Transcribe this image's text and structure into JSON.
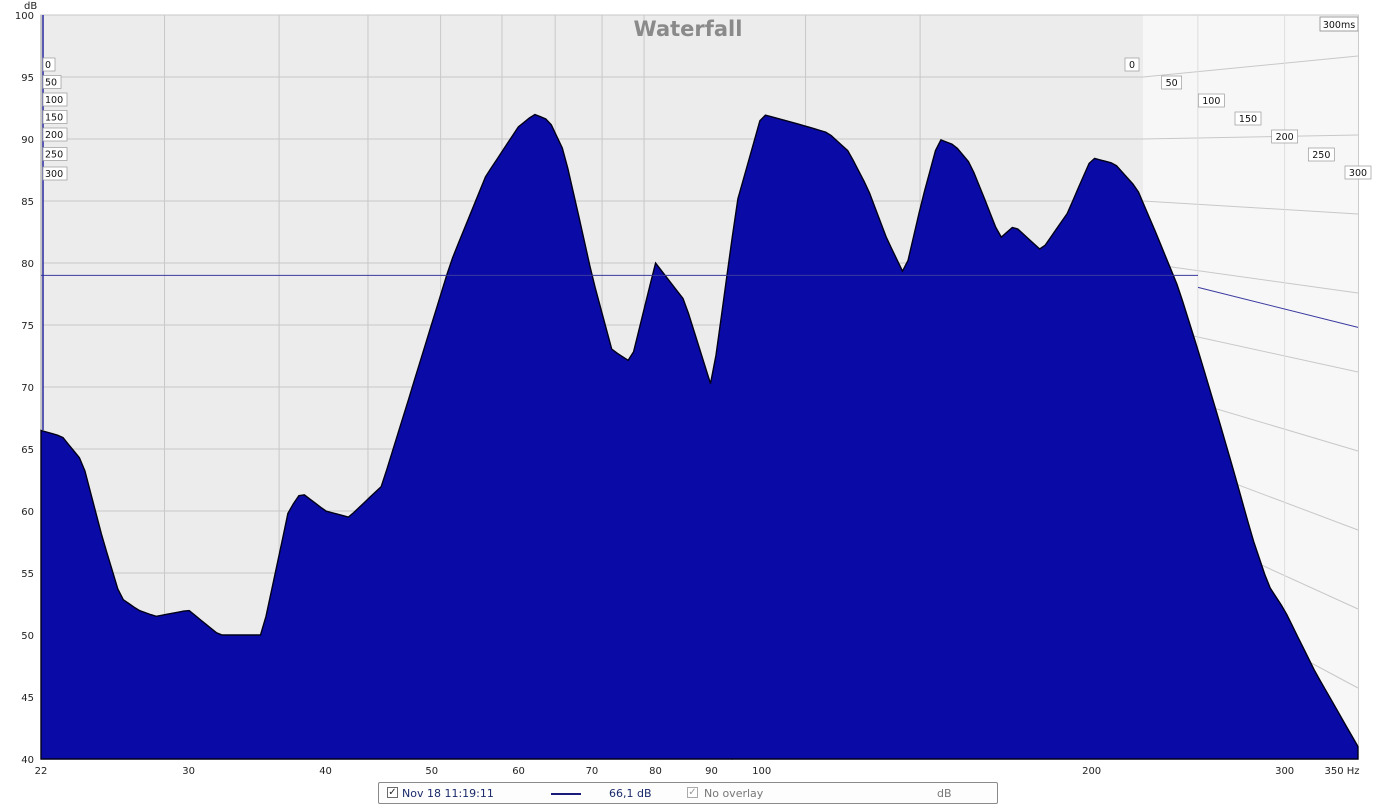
{
  "chart_data": {
    "type": "area",
    "title": "Waterfall",
    "ylabel": "dB",
    "xlabel": "Hz",
    "x_scale": "log",
    "xlim": [
      22,
      350
    ],
    "ylim": [
      40,
      100
    ],
    "x_ticks": [
      22,
      30,
      40,
      50,
      60,
      70,
      80,
      90,
      100,
      200,
      300,
      350
    ],
    "x_tick_labels": [
      "22",
      "30",
      "40",
      "50",
      "60",
      "70",
      "80",
      "90",
      "100",
      "200",
      "300",
      "350 Hz"
    ],
    "y_ticks": [
      40,
      45,
      50,
      55,
      60,
      65,
      70,
      75,
      80,
      85,
      90,
      95,
      100
    ],
    "time_axis_ms": [
      0,
      50,
      100,
      150,
      200,
      250,
      300
    ],
    "time_axis_end_label": "300ms",
    "reference_level_db": 79,
    "series": [
      {
        "name": "Nov 18 11:19:11",
        "x": [
          22,
          23,
          24,
          25,
          26,
          27,
          28,
          30,
          32,
          35,
          37,
          38,
          40,
          42,
          45,
          48,
          52,
          56,
          60,
          62,
          64,
          66,
          68,
          70,
          73,
          76,
          80,
          85,
          90,
          95,
          100,
          105,
          110,
          115,
          120,
          125,
          130,
          135,
          140,
          145,
          150,
          155,
          160,
          165,
          170,
          180,
          190,
          200,
          210,
          220,
          230,
          240,
          250,
          260,
          270,
          280,
          290,
          300,
          320,
          350
        ],
        "y_db": [
          66.5,
          66,
          64,
          58,
          53,
          52,
          51.5,
          52,
          50,
          50,
          60,
          61.5,
          60,
          59.5,
          62,
          70,
          80,
          87,
          91,
          92,
          91.5,
          89,
          84,
          79,
          73,
          72,
          80,
          77,
          70,
          85,
          92,
          91.5,
          91,
          90.5,
          89,
          86,
          82,
          79,
          85,
          90,
          89.5,
          88,
          85,
          82,
          83,
          81,
          84,
          88.5,
          88,
          86,
          82,
          78,
          73,
          68,
          63,
          58,
          54,
          52,
          47,
          41
        ]
      }
    ]
  },
  "legend": {
    "series_label": "Nov 18 11:19:11",
    "series_checked": "✓",
    "value_label": "66,1  dB",
    "overlay_checked": "✓",
    "overlay_label": "No overlay",
    "unit_label": "dB"
  },
  "colors": {
    "fill": "#0a0aa6",
    "outline": "#000018",
    "plot_background": "#ececec",
    "grid": "#c8c8c8",
    "reference_line": "#3a3aa0"
  }
}
